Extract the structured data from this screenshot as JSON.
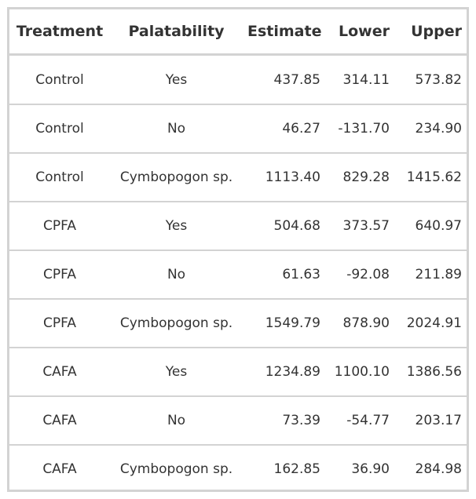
{
  "table": {
    "headers": [
      "Treatment",
      "Palatability",
      "Estimate",
      "Lower",
      "Upper"
    ],
    "rows": [
      [
        "Control",
        "Yes",
        "437.85",
        "314.11",
        "573.82"
      ],
      [
        "Control",
        "No",
        "46.27",
        "-131.70",
        "234.90"
      ],
      [
        "Control",
        "Cymbopogon sp.",
        "1113.40",
        "829.28",
        "1415.62"
      ],
      [
        "CPFA",
        "Yes",
        "504.68",
        "373.57",
        "640.97"
      ],
      [
        "CPFA",
        "No",
        "61.63",
        "-92.08",
        "211.89"
      ],
      [
        "CPFA",
        "Cymbopogon sp.",
        "1549.79",
        "878.90",
        "2024.91"
      ],
      [
        "CAFA",
        "Yes",
        "1234.89",
        "1100.10",
        "1386.56"
      ],
      [
        "CAFA",
        "No",
        "73.39",
        "-54.77",
        "203.17"
      ],
      [
        "CAFA",
        "Cymbopogon sp.",
        "162.85",
        "36.90",
        "284.98"
      ]
    ]
  }
}
